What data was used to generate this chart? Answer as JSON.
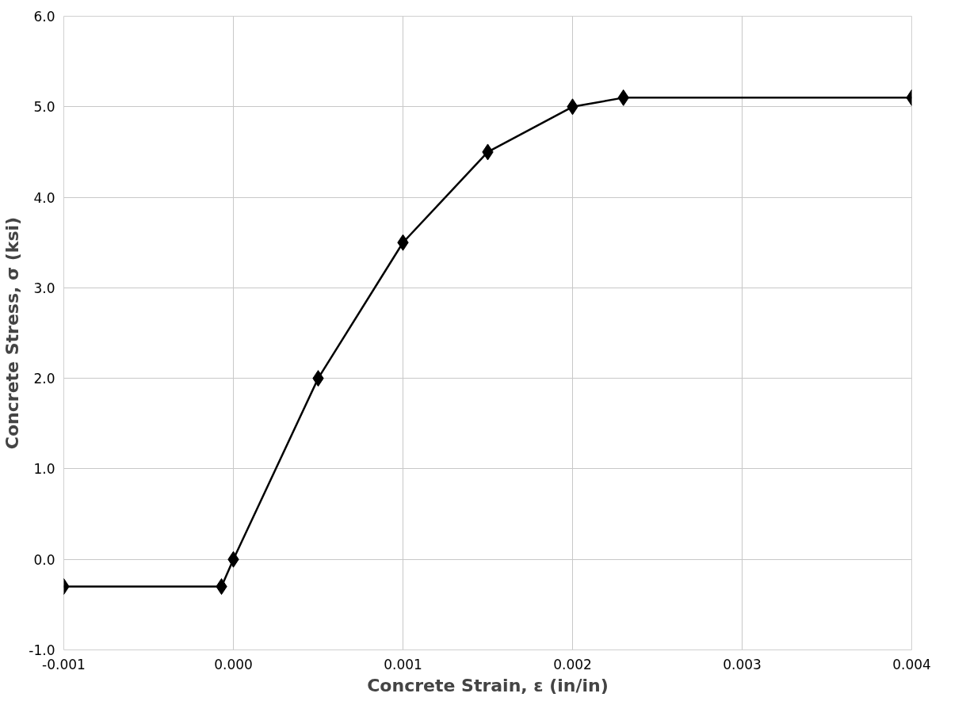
{
  "chart_data": {
    "type": "line",
    "xlabel": "Concrete Strain, ε (in/in)",
    "ylabel": "Concrete Stress, σ (ksi)",
    "x": [
      -0.001,
      -7e-05,
      0.0,
      0.0005,
      0.001,
      0.0015,
      0.002,
      0.0023,
      0.004
    ],
    "series": [
      {
        "color": "#000000",
        "values": [
          -0.3,
          -0.3,
          0.0,
          2.0,
          3.5,
          4.5,
          5.0,
          5.1,
          5.1
        ]
      }
    ],
    "xlim": [
      -0.001,
      0.004
    ],
    "xticks": [
      {
        "value": -0.001,
        "label": "-0.001"
      },
      {
        "value": 0,
        "label": "0.000"
      },
      {
        "value": 0.001,
        "label": "0.001"
      },
      {
        "value": 0.002,
        "label": "0.002"
      },
      {
        "value": 0.003,
        "label": "0.003"
      },
      {
        "value": 0.004,
        "label": "0.004"
      }
    ],
    "ylim": [
      -1.0,
      6.0
    ],
    "yticks": [
      {
        "value": -1,
        "label": "-1.0"
      },
      {
        "value": 0,
        "label": "0.0"
      },
      {
        "value": 1,
        "label": "1.0"
      },
      {
        "value": 2,
        "label": "2.0"
      },
      {
        "value": 3,
        "label": "3.0"
      },
      {
        "value": 4,
        "label": "4.0"
      },
      {
        "value": 5,
        "label": "5.0"
      },
      {
        "value": 6,
        "label": "6.0"
      }
    ],
    "grid": true,
    "marker": "diamond",
    "line_style": "solid"
  }
}
